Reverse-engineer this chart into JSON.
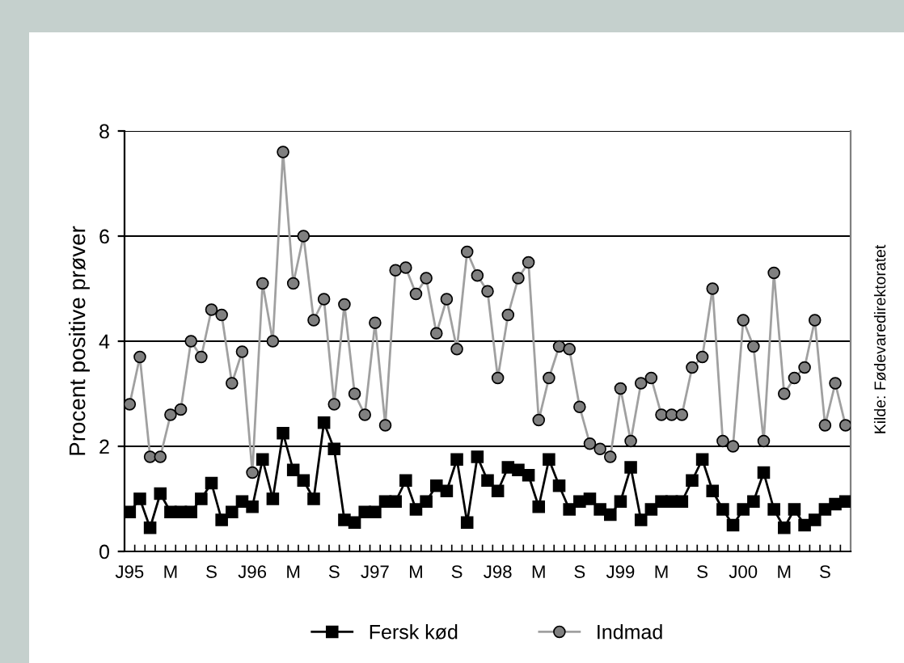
{
  "chart_data": {
    "type": "line",
    "ylabel": "Procent positive prøver",
    "categories": [
      "J95",
      null,
      null,
      null,
      "M",
      null,
      null,
      null,
      "S",
      null,
      null,
      null,
      "J96",
      null,
      null,
      null,
      "M",
      null,
      null,
      null,
      "S",
      null,
      null,
      null,
      "J97",
      null,
      null,
      null,
      "M",
      null,
      null,
      null,
      "S",
      null,
      null,
      null,
      "J98",
      null,
      null,
      null,
      "M",
      null,
      null,
      null,
      "S",
      null,
      null,
      null,
      "J99",
      null,
      null,
      null,
      "M",
      null,
      null,
      null,
      "S",
      null,
      null,
      null,
      "J00",
      null,
      null,
      null,
      "M",
      null,
      null,
      null,
      "S",
      null,
      null
    ],
    "series": [
      {
        "name": "Fersk kød",
        "color": "#000000",
        "marker": "square",
        "values": [
          0.75,
          1.0,
          0.45,
          1.1,
          0.75,
          0.75,
          0.75,
          1.0,
          1.3,
          0.6,
          0.75,
          0.95,
          0.85,
          1.75,
          1.0,
          2.25,
          1.55,
          1.35,
          1.0,
          2.45,
          1.95,
          0.6,
          0.55,
          0.75,
          0.75,
          0.95,
          0.95,
          1.35,
          0.8,
          0.95,
          1.25,
          1.15,
          1.75,
          0.55,
          1.8,
          1.35,
          1.15,
          1.6,
          1.55,
          1.45,
          0.85,
          1.75,
          1.25,
          0.8,
          0.95,
          1.0,
          0.8,
          0.7,
          0.95,
          1.6,
          0.6,
          0.8,
          0.95,
          0.95,
          0.95,
          1.35,
          1.75,
          1.15,
          0.8,
          0.5,
          0.8,
          0.95,
          1.5,
          0.8,
          0.45,
          0.8,
          0.5,
          0.6,
          0.8,
          0.9,
          0.95
        ]
      },
      {
        "name": "Indmad",
        "color": "#808080",
        "marker": "circle",
        "values": [
          2.8,
          3.7,
          1.8,
          1.8,
          2.6,
          2.7,
          4.0,
          3.7,
          4.6,
          4.5,
          3.2,
          3.8,
          1.5,
          5.1,
          4.0,
          7.6,
          5.1,
          6.0,
          4.4,
          4.8,
          2.8,
          4.7,
          3.0,
          2.6,
          4.35,
          2.4,
          5.35,
          5.4,
          4.9,
          5.2,
          4.15,
          4.8,
          3.85,
          5.7,
          5.25,
          4.95,
          3.3,
          4.5,
          5.2,
          5.5,
          2.5,
          3.3,
          3.9,
          3.85,
          2.75,
          2.05,
          1.95,
          1.8,
          3.1,
          2.1,
          3.2,
          3.3,
          2.6,
          2.6,
          2.6,
          3.5,
          3.7,
          5.0,
          2.1,
          2.0,
          4.4,
          3.9,
          2.1,
          5.3,
          3.0,
          3.3,
          3.5,
          4.4,
          2.4,
          3.2,
          2.4
        ]
      }
    ],
    "ylim": [
      0,
      8
    ],
    "yticks": [
      0,
      2,
      4,
      6,
      8
    ],
    "grid": "y",
    "legend": "bottom",
    "line_style": "solid",
    "annotations": [
      "Kilde: Fødevaredirektoratet"
    ]
  }
}
